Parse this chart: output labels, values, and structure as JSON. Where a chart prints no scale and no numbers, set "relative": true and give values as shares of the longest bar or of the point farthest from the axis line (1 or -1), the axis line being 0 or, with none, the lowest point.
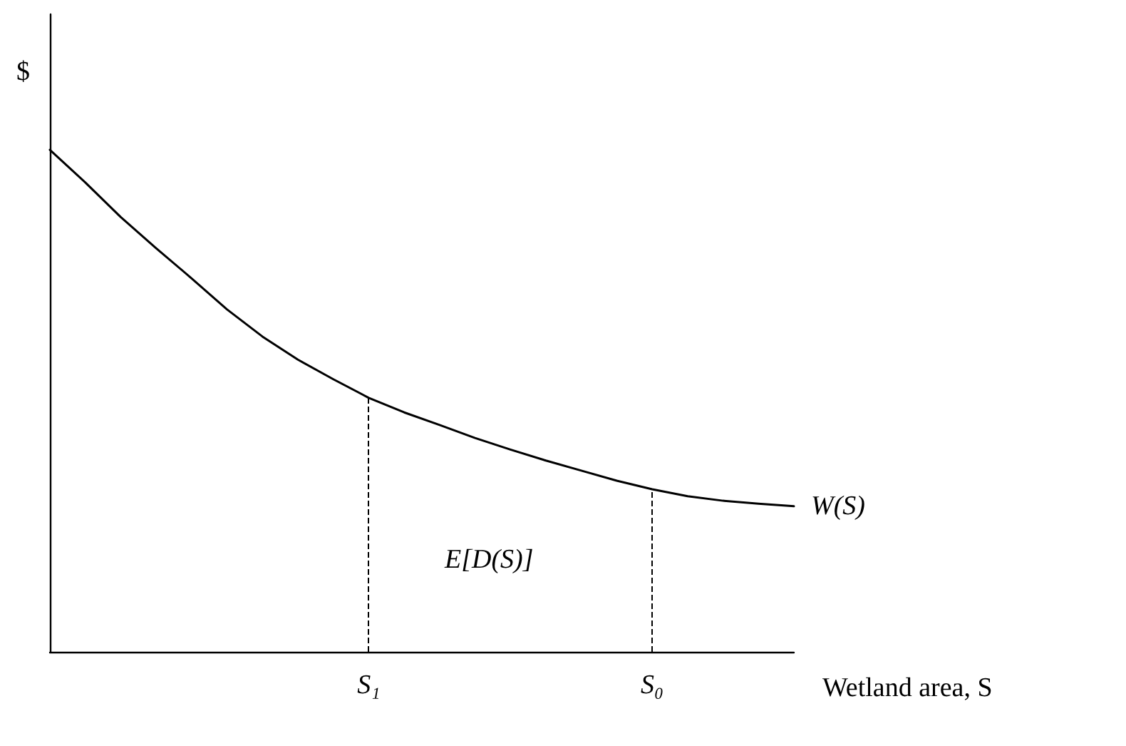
{
  "chart_data": {
    "type": "line",
    "relative": true,
    "ylabel": "$",
    "xlabel": "Wetland area, S",
    "categories": [
      null,
      null,
      null,
      null,
      null,
      null,
      null,
      null,
      null,
      "S₁",
      null,
      null,
      null,
      null,
      null,
      null,
      null,
      "S₀",
      null,
      null,
      null,
      null
    ],
    "series": [
      {
        "name": "W(S)",
        "color": "#000000",
        "values": [
          1,
          0.935,
          0.866,
          0.804,
          0.744,
          0.682,
          0.628,
          0.582,
          0.543,
          0.506,
          0.477,
          0.452,
          0.426,
          0.403,
          0.381,
          0.361,
          0.341,
          0.324,
          0.31,
          0.301,
          0.295,
          0.29
        ]
      }
    ],
    "ref_lines": [
      {
        "axis": "x",
        "value": "S₁",
        "line_style": "dashed",
        "color": "#000000"
      },
      {
        "axis": "x",
        "value": "S₀",
        "line_style": "dashed",
        "color": "#000000"
      }
    ],
    "annotations": [
      "E[D(S)]"
    ],
    "grid": false,
    "legend": false,
    "marker": "none",
    "line_style": "solid"
  }
}
